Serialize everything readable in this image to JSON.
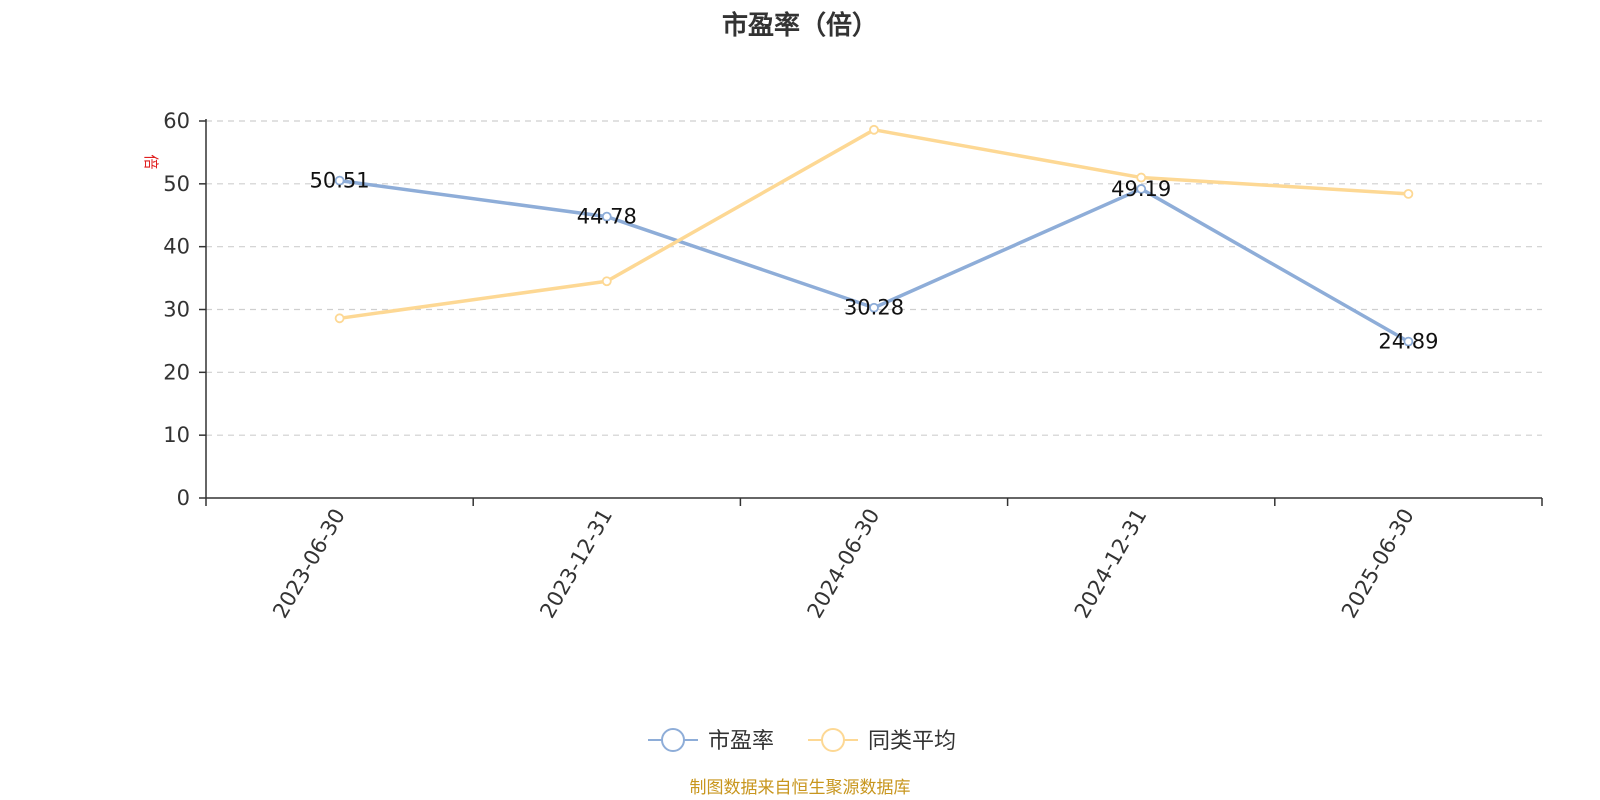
{
  "chart_data": {
    "type": "line",
    "title": "市盈率（倍）",
    "ylabel": "倍",
    "xlabel": "",
    "categories": [
      "2023-06-30",
      "2023-12-31",
      "2024-06-30",
      "2024-12-31",
      "2025-06-30"
    ],
    "series": [
      {
        "name": "市盈率",
        "values": [
          50.51,
          44.78,
          30.28,
          49.19,
          24.89
        ],
        "color": "#8eadd8",
        "show_labels": true
      },
      {
        "name": "同类平均",
        "values": [
          28.6,
          34.5,
          58.6,
          51.0,
          48.4
        ],
        "color": "#fdd894",
        "show_labels": false
      }
    ],
    "ylim": [
      0,
      60
    ],
    "yticks": [
      0,
      10,
      20,
      30,
      40,
      50,
      60
    ],
    "grid": true,
    "legend_position": "bottom-center"
  },
  "source_note": "制图数据来自恒生聚源数据库"
}
